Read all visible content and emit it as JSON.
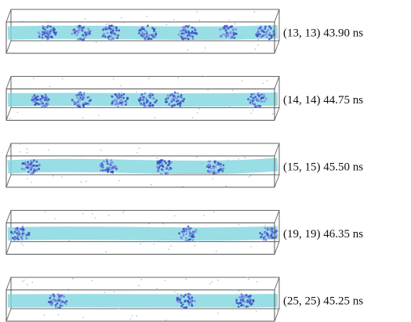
{
  "panels": [
    {
      "label": "(13, 13) 43.90 ns"
    },
    {
      "label": "(14, 14) 44.75 ns"
    },
    {
      "label": "(15, 15) 45.50 ns"
    },
    {
      "label": "(19, 19) 46.35 ns"
    },
    {
      "label": "(25, 25) 45.25 ns"
    }
  ]
}
